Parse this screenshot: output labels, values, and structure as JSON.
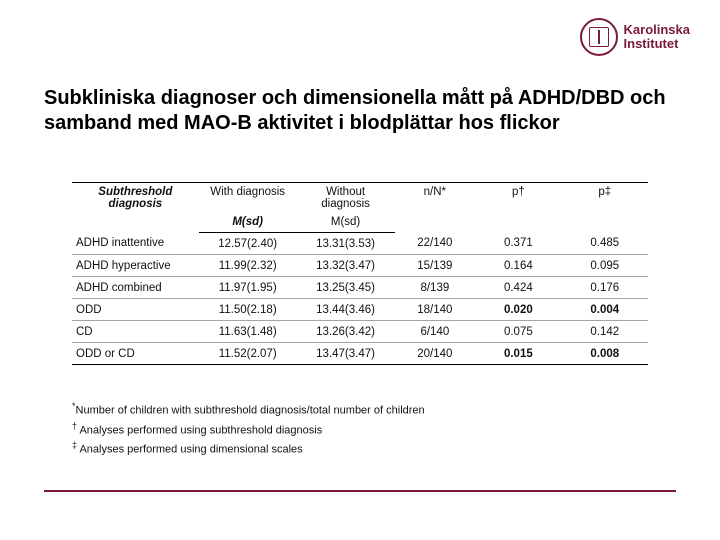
{
  "brand": {
    "line1": "Karolinska",
    "line2": "Institutet",
    "color": "#7a1a3a"
  },
  "title": "Subkliniska diagnoser och dimensionella mått på ADHD/DBD och samband med  MAO-B aktivitet i blodplättar hos flickor",
  "table": {
    "headers": {
      "c1": "Subthreshold diagnosis",
      "c2": "With diagnosis",
      "c3": "Without diagnosis",
      "c4": "n/N*",
      "c5": "p†",
      "c6": "p‡",
      "sub_c2": "M(sd)",
      "sub_c3": "M(sd)"
    },
    "rows": [
      {
        "label": "ADHD inattentive",
        "with": "12.57(2.40)",
        "without": "13.31(3.53)",
        "nN": "22/140",
        "p1": "0.371",
        "p2": "0.485",
        "bold": false
      },
      {
        "label": "ADHD hyperactive",
        "with": "11.99(2.32)",
        "without": "13.32(3.47)",
        "nN": "15/139",
        "p1": "0.164",
        "p2": "0.095",
        "bold": false
      },
      {
        "label": "ADHD combined",
        "with": "11.97(1.95)",
        "without": "13.25(3.45)",
        "nN": "8/139",
        "p1": "0.424",
        "p2": "0.176",
        "bold": false
      },
      {
        "label": "ODD",
        "with": "11.50(2.18)",
        "without": "13.44(3.46)",
        "nN": "18/140",
        "p1": "0.020",
        "p2": "0.004",
        "bold": true
      },
      {
        "label": "CD",
        "with": "11.63(1.48)",
        "without": "13.26(3.42)",
        "nN": "6/140",
        "p1": "0.075",
        "p2": "0.142",
        "bold": false
      },
      {
        "label": "ODD or CD",
        "with": "11.52(2.07)",
        "without": "13.47(3.47)",
        "nN": "20/140",
        "p1": "0.015",
        "p2": "0.008",
        "bold": true
      }
    ]
  },
  "footnotes": {
    "f1": "Number of children with subthreshold diagnosis/total number of children",
    "f2": "Analyses performed using subthreshold diagnosis",
    "f3": "Analyses performed using dimensional scales"
  }
}
